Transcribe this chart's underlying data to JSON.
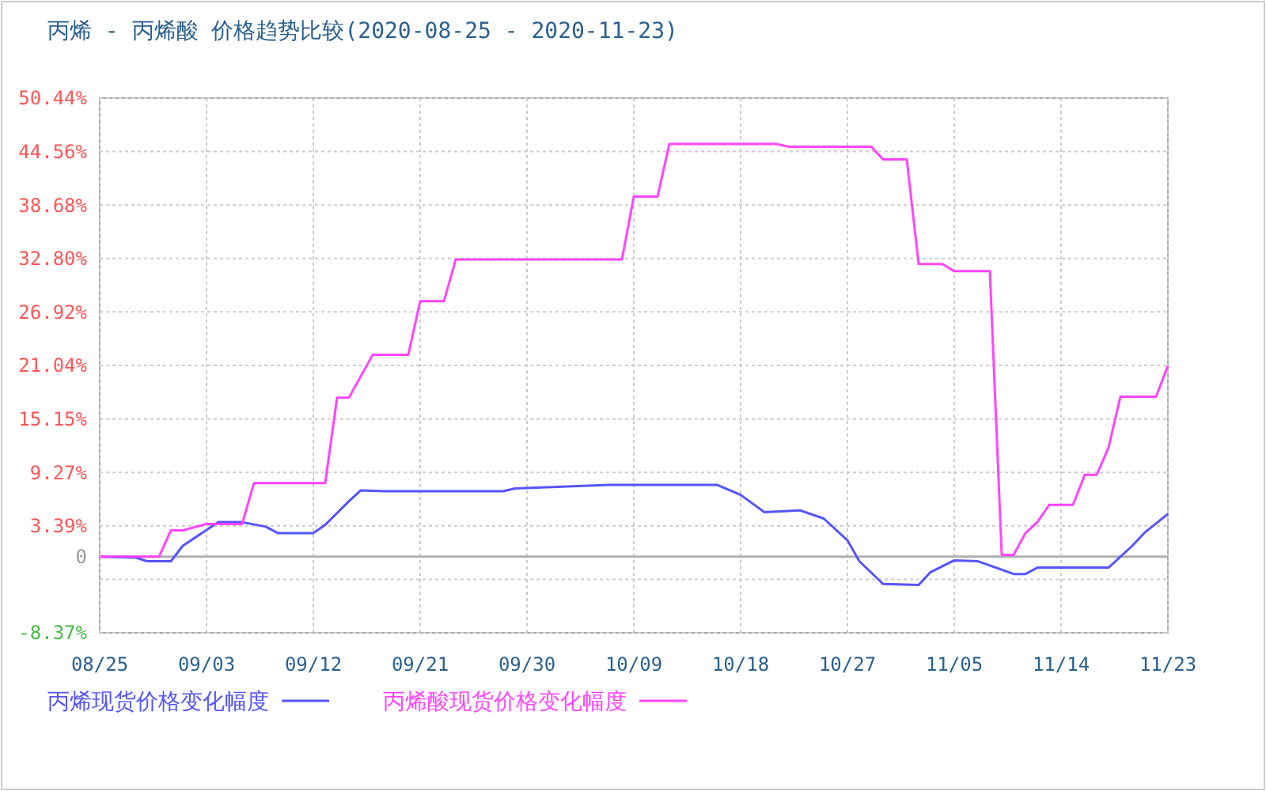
{
  "chart_data": {
    "type": "line",
    "title": "丙烯 - 丙烯酸 价格趋势比较(2020-08-25 - 2020-11-23)",
    "xlim": [
      "2020-08-25",
      "2020-11-23"
    ],
    "xticks": [
      {
        "value": "2020-08-25",
        "label": "08/25"
      },
      {
        "value": "2020-09-03",
        "label": "09/03"
      },
      {
        "value": "2020-09-12",
        "label": "09/12"
      },
      {
        "value": "2020-09-21",
        "label": "09/21"
      },
      {
        "value": "2020-09-30",
        "label": "09/30"
      },
      {
        "value": "2020-10-09",
        "label": "10/09"
      },
      {
        "value": "2020-10-18",
        "label": "10/18"
      },
      {
        "value": "2020-10-27",
        "label": "10/27"
      },
      {
        "value": "2020-11-05",
        "label": "11/05"
      },
      {
        "value": "2020-11-14",
        "label": "11/14"
      },
      {
        "value": "2020-11-23",
        "label": "11/23"
      }
    ],
    "ylim": [
      -8.37,
      50.44
    ],
    "yticks": [
      {
        "value": -8.37,
        "label": "-8.37%"
      },
      {
        "value": -2.49,
        "label": null
      },
      {
        "value": 0,
        "label": "0"
      },
      {
        "value": 3.39,
        "label": "3.39%"
      },
      {
        "value": 9.27,
        "label": "9.27%"
      },
      {
        "value": 15.15,
        "label": "15.15%"
      },
      {
        "value": 21.04,
        "label": "21.04%"
      },
      {
        "value": 26.92,
        "label": "26.92%"
      },
      {
        "value": 32.8,
        "label": "32.80%"
      },
      {
        "value": 38.68,
        "label": "38.68%"
      },
      {
        "value": 44.56,
        "label": "44.56%"
      },
      {
        "value": 50.44,
        "label": "50.44%"
      }
    ],
    "grid": true,
    "legend": "bottom",
    "marker": "none",
    "line_style": "solid",
    "ref_lines": [
      {
        "axis": "y",
        "value": 0,
        "color": "#b0b0b0"
      }
    ],
    "series": [
      {
        "name": "丙烯现货价格变化幅度",
        "color": "#5555ff",
        "x": [
          "2020-08-25",
          "2020-08-28",
          "2020-08-29",
          "2020-08-31",
          "2020-09-01",
          "2020-09-04",
          "2020-09-06",
          "2020-09-08",
          "2020-09-09",
          "2020-09-12",
          "2020-09-13",
          "2020-09-15",
          "2020-09-16",
          "2020-09-18",
          "2020-09-28",
          "2020-09-29",
          "2020-10-07",
          "2020-10-16",
          "2020-10-18",
          "2020-10-20",
          "2020-10-23",
          "2020-10-25",
          "2020-10-27",
          "2020-10-28",
          "2020-10-30",
          "2020-11-02",
          "2020-11-03",
          "2020-11-05",
          "2020-11-07",
          "2020-11-10",
          "2020-11-11",
          "2020-11-12",
          "2020-11-18",
          "2020-11-20",
          "2020-11-21",
          "2020-11-23"
        ],
        "values": [
          0,
          -0.1,
          -0.5,
          -0.5,
          1.2,
          3.8,
          3.8,
          3.3,
          2.6,
          2.6,
          3.5,
          6.1,
          7.3,
          7.2,
          7.2,
          7.5,
          7.9,
          7.9,
          6.8,
          4.9,
          5.1,
          4.2,
          1.8,
          -0.5,
          -3.0,
          -3.1,
          -1.7,
          -0.4,
          -0.5,
          -1.9,
          -1.9,
          -1.2,
          -1.2,
          1.2,
          2.6,
          4.7
        ]
      },
      {
        "name": "丙烯酸现货价格变化幅度",
        "color": "#ff44ff",
        "x": [
          "2020-08-25",
          "2020-08-30",
          "2020-08-31",
          "2020-09-01",
          "2020-09-03",
          "2020-09-06",
          "2020-09-07",
          "2020-09-13",
          "2020-09-14",
          "2020-09-15",
          "2020-09-17",
          "2020-09-20",
          "2020-09-21",
          "2020-09-23",
          "2020-09-24",
          "2020-10-08",
          "2020-10-09",
          "2020-10-11",
          "2020-10-12",
          "2020-10-21",
          "2020-10-22",
          "2020-10-29",
          "2020-10-30",
          "2020-11-01",
          "2020-11-02",
          "2020-11-04",
          "2020-11-05",
          "2020-11-08",
          "2020-11-09",
          "2020-11-10",
          "2020-11-11",
          "2020-11-12",
          "2020-11-13",
          "2020-11-15",
          "2020-11-16",
          "2020-11-17",
          "2020-11-18",
          "2020-11-19",
          "2020-11-22",
          "2020-11-23"
        ],
        "values": [
          0,
          0,
          2.9,
          2.9,
          3.6,
          3.6,
          8.1,
          8.1,
          17.5,
          17.5,
          22.2,
          22.2,
          28.1,
          28.1,
          32.7,
          32.7,
          39.6,
          39.6,
          45.4,
          45.4,
          45.1,
          45.1,
          43.7,
          43.7,
          32.2,
          32.2,
          31.4,
          31.4,
          0.2,
          0.2,
          2.6,
          3.8,
          5.7,
          5.7,
          9.0,
          9.0,
          12.0,
          17.6,
          17.6,
          21.0
        ]
      }
    ]
  }
}
